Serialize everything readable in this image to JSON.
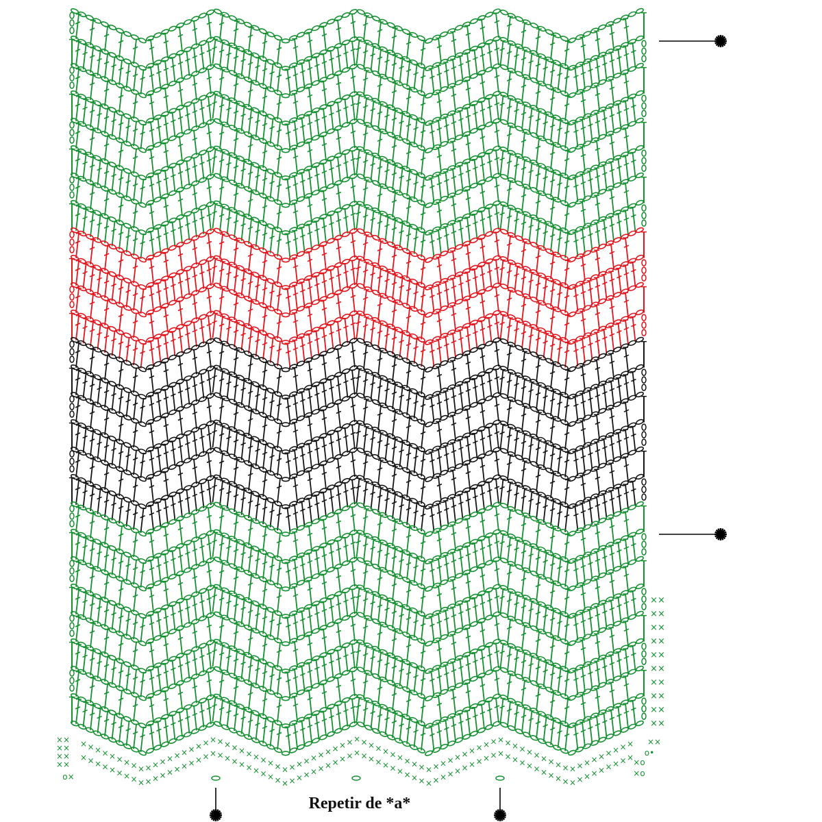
{
  "caption": "Repetir de *a*",
  "colors": {
    "green": "#149030",
    "red": "#e3141b",
    "black": "#151515",
    "marker": "#000000"
  },
  "row_color_sequence": [
    {
      "color": "green",
      "rows": 8
    },
    {
      "color": "red",
      "rows": 4
    },
    {
      "color": "black",
      "rows": 6
    },
    {
      "color": "green",
      "rows": 8
    }
  ],
  "foundation": {
    "color": "green",
    "stitch_symbol": "×",
    "chain_symbol": "o",
    "rows": 3
  },
  "stitch_types": [
    "chain",
    "double-crochet",
    "single-crochet"
  ],
  "markers": [
    {
      "type": "asterisk",
      "orientation": "horizontal",
      "side": "right",
      "label": "*"
    },
    {
      "type": "asterisk",
      "orientation": "horizontal",
      "side": "right",
      "label": "*"
    },
    {
      "type": "asterisk",
      "orientation": "vertical",
      "side": "bottom",
      "label": "*"
    },
    {
      "type": "asterisk",
      "orientation": "vertical",
      "side": "bottom",
      "label": "*"
    }
  ],
  "side_stitches_right": {
    "symbol": "××",
    "count": 10
  }
}
